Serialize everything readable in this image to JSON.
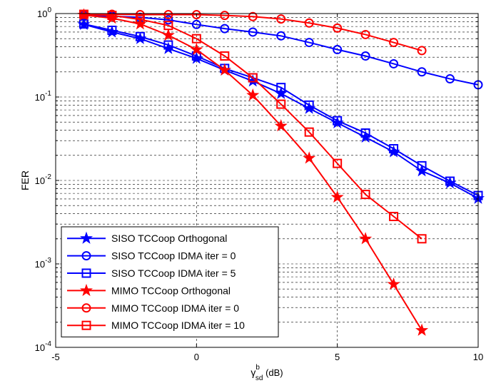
{
  "chart_data": {
    "type": "line",
    "title": "",
    "xlabel": {
      "base": "γ",
      "sup": "b",
      "sub": "sd",
      "unit": " (dB)"
    },
    "ylabel": "FER",
    "xlim": [
      -5,
      10
    ],
    "ylim": [
      0.0001,
      1
    ],
    "yscale": "log",
    "grid": true,
    "legend_position": "bottom-left",
    "xticks": [
      "-5",
      "0",
      "5",
      "10"
    ],
    "yticks": [
      {
        "base": "10",
        "exp": "0"
      },
      {
        "base": "10",
        "exp": "-1"
      },
      {
        "base": "10",
        "exp": "-2"
      },
      {
        "base": "10",
        "exp": "-3"
      },
      {
        "base": "10",
        "exp": "-4"
      }
    ],
    "series": [
      {
        "name": "SISO TCCoop Orthogonal",
        "color": "#0000ff",
        "marker": "star",
        "x": [
          -4,
          -3,
          -2,
          -1,
          0,
          1,
          2,
          3,
          4,
          5,
          6,
          7,
          8,
          9,
          10
        ],
        "y": [
          0.74,
          0.6,
          0.5,
          0.38,
          0.29,
          0.21,
          0.155,
          0.11,
          0.073,
          0.049,
          0.033,
          0.022,
          0.013,
          0.0093,
          0.0061
        ]
      },
      {
        "name": "SISO TCCoop IDMA iter = 0",
        "color": "#0000ff",
        "marker": "circle",
        "x": [
          -4,
          -3,
          -2,
          -1,
          0,
          1,
          2,
          3,
          4,
          5,
          6,
          7,
          8,
          9,
          10
        ],
        "y": [
          0.95,
          0.93,
          0.9,
          0.84,
          0.74,
          0.66,
          0.6,
          0.54,
          0.45,
          0.37,
          0.31,
          0.25,
          0.2,
          0.165,
          0.14
        ]
      },
      {
        "name": "SISO TCCoop IDMA iter = 5",
        "color": "#0000ff",
        "marker": "square",
        "x": [
          -4,
          -3,
          -2,
          -1,
          0,
          1,
          2,
          3,
          4,
          5,
          6,
          7,
          8,
          9,
          10
        ],
        "y": [
          0.75,
          0.63,
          0.53,
          0.42,
          0.31,
          0.22,
          0.17,
          0.13,
          0.08,
          0.052,
          0.037,
          0.024,
          0.015,
          0.0098,
          0.0066
        ]
      },
      {
        "name": "MIMO TCCoop Orthogonal",
        "color": "#ff0000",
        "marker": "star",
        "x": [
          -4,
          -3,
          -2,
          -1,
          0,
          1,
          2,
          3,
          4,
          5,
          6,
          7,
          8
        ],
        "y": [
          0.96,
          0.88,
          0.75,
          0.55,
          0.37,
          0.21,
          0.105,
          0.045,
          0.0185,
          0.0063,
          0.002,
          0.00057,
          0.00016
        ]
      },
      {
        "name": "MIMO TCCoop IDMA iter = 0",
        "color": "#ff0000",
        "marker": "circle",
        "x": [
          -4,
          -3,
          -2,
          -1,
          0,
          1,
          2,
          3,
          4,
          5,
          6,
          7,
          8
        ],
        "y": [
          0.98,
          0.98,
          0.97,
          0.97,
          0.97,
          0.95,
          0.92,
          0.86,
          0.77,
          0.67,
          0.56,
          0.45,
          0.36
        ]
      },
      {
        "name": "MIMO TCCoop IDMA iter = 10",
        "color": "#ff0000",
        "marker": "square",
        "x": [
          -4,
          -3,
          -2,
          -1,
          0,
          1,
          2,
          3,
          4,
          5,
          6,
          7,
          8
        ],
        "y": [
          0.98,
          0.95,
          0.85,
          0.72,
          0.5,
          0.31,
          0.17,
          0.082,
          0.038,
          0.016,
          0.0068,
          0.0037,
          0.002
        ]
      }
    ]
  }
}
